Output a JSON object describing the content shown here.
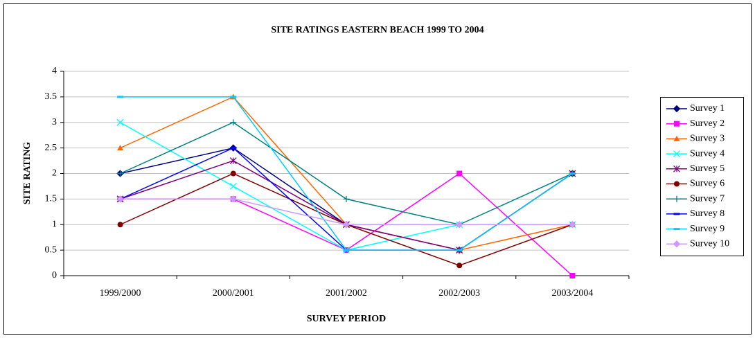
{
  "chart_data": {
    "type": "line",
    "title": "SITE RATINGS EASTERN BEACH 1999 TO 2004",
    "x_label": "SURVEY PERIOD",
    "y_label": "SITE RATING",
    "categories": [
      "1999/2000",
      "2000/2001",
      "2001/2002",
      "2002/2003",
      "2003/2004"
    ],
    "ylim": [
      0,
      4
    ],
    "yticks": [
      0,
      0.5,
      1,
      1.5,
      2,
      2.5,
      3,
      3.5,
      4
    ],
    "grid": true,
    "legend": "right",
    "series": [
      {
        "name": "Survey 1",
        "color": "#000080",
        "marker": "diamond",
        "values": [
          2,
          2.5,
          1,
          0.5,
          2
        ]
      },
      {
        "name": "Survey 2",
        "color": "#ff00ff",
        "marker": "square",
        "values": [
          1.5,
          1.5,
          0.5,
          2,
          0
        ]
      },
      {
        "name": "Survey 3",
        "color": "#ff6600",
        "marker": "triangle",
        "values": [
          2.5,
          3.5,
          1,
          0.5,
          1
        ]
      },
      {
        "name": "Survey 4",
        "color": "#00ffff",
        "marker": "x",
        "values": [
          3,
          1.75,
          0.5,
          1,
          1
        ]
      },
      {
        "name": "Survey 5",
        "color": "#800080",
        "marker": "star",
        "values": [
          1.5,
          2.25,
          1,
          0.5,
          2
        ]
      },
      {
        "name": "Survey 6",
        "color": "#800000",
        "marker": "circle",
        "values": [
          1,
          2,
          1,
          0.2,
          1
        ]
      },
      {
        "name": "Survey 7",
        "color": "#008080",
        "marker": "plus",
        "values": [
          2,
          3,
          1.5,
          1,
          2
        ]
      },
      {
        "name": "Survey 8",
        "color": "#0000ff",
        "marker": "dash",
        "values": [
          1.5,
          2.5,
          0.5,
          0.5,
          2
        ]
      },
      {
        "name": "Survey 9",
        "color": "#00ccff",
        "marker": "dash",
        "values": [
          3.5,
          3.5,
          0.5,
          0.5,
          2
        ]
      },
      {
        "name": "Survey 10",
        "color": "#cc99ff",
        "marker": "diamond",
        "values": [
          1.5,
          1.5,
          1,
          1,
          1
        ]
      }
    ]
  }
}
